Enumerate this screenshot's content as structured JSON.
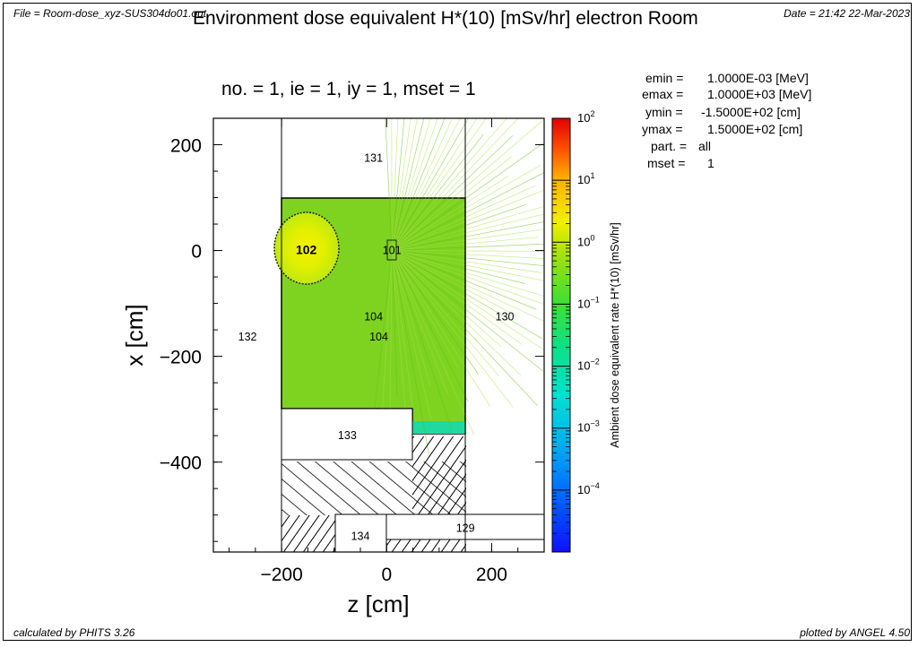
{
  "header": {
    "file": "File = Room-dose_xyz-SUS304do01.out",
    "date": "Date = 21:42 22-Mar-2023",
    "title": "Environment dose equivalent H*(10) [mSv/hr] electron Room"
  },
  "subtitle": "no. =  1,  ie =  1,  iy =  1,  mset =  1",
  "info": {
    "emin_label": "emin  =",
    "emin_value": "1.0000E-03 [MeV]",
    "emax_label": "emax  =",
    "emax_value": "1.0000E+03 [MeV]",
    "ymin_label": "ymin  =",
    "ymin_value": "-1.5000E+02 [cm]",
    "ymax_label": "ymax  =",
    "ymax_value": "1.5000E+02 [cm]",
    "part_label": "part. =",
    "part_value": "all",
    "mset_label": "mset  =",
    "mset_value": "1"
  },
  "footer": {
    "left_prefix": "calculated by ",
    "left_brand": "PHITS",
    "left_version": " 3.26",
    "right_prefix": "plotted by ",
    "right_brand": "ANGEL",
    "right_version": " 4.50"
  },
  "colors": {
    "green": "#7ed321",
    "green_light": "#a8e040",
    "yellow_green": "#c8e800",
    "cyan_green": "#20d8a0",
    "black": "#000000",
    "white": "#ffffff"
  },
  "chart_data": {
    "type": "heatmap",
    "title": "Environment dose equivalent H*(10) [mSv/hr] electron Room",
    "xlabel": "z [cm]",
    "ylabel": "x [cm]",
    "xlim": [
      -330,
      300
    ],
    "ylim": [
      -570,
      250
    ],
    "xticks": [
      -200,
      0,
      200
    ],
    "xtick_labels": [
      "−200",
      "0",
      "200"
    ],
    "yticks": [
      200,
      0,
      -200,
      -400
    ],
    "ytick_labels": [
      "200",
      "0",
      "−200",
      "−400"
    ],
    "colorbar": {
      "label": "Ambient dose equivalent rate H*(10) [mSv/hr]",
      "scale": "log",
      "range": [
        1e-05,
        100
      ],
      "tick_exponents": [
        2,
        1,
        0,
        -1,
        -2,
        -3,
        -4
      ],
      "tick_base": "10"
    },
    "regions": [
      {
        "id": "131",
        "label_z": -25,
        "label_x": 175
      },
      {
        "id": "102",
        "label_z": -153,
        "label_x": 0
      },
      {
        "id": "101",
        "label_z": 10,
        "label_x": 0
      },
      {
        "id": "104",
        "label_z": -25,
        "label_x": -125
      },
      {
        "id": "104",
        "label_z": -15,
        "label_x": -163
      },
      {
        "id": "130",
        "label_z": 225,
        "label_x": -125
      },
      {
        "id": "132",
        "label_z": -265,
        "label_x": -163
      },
      {
        "id": "133",
        "label_z": -75,
        "label_x": -350
      },
      {
        "id": "129",
        "label_z": 150,
        "label_x": -525
      },
      {
        "id": "134",
        "label_z": -50,
        "label_x": -540
      }
    ]
  }
}
